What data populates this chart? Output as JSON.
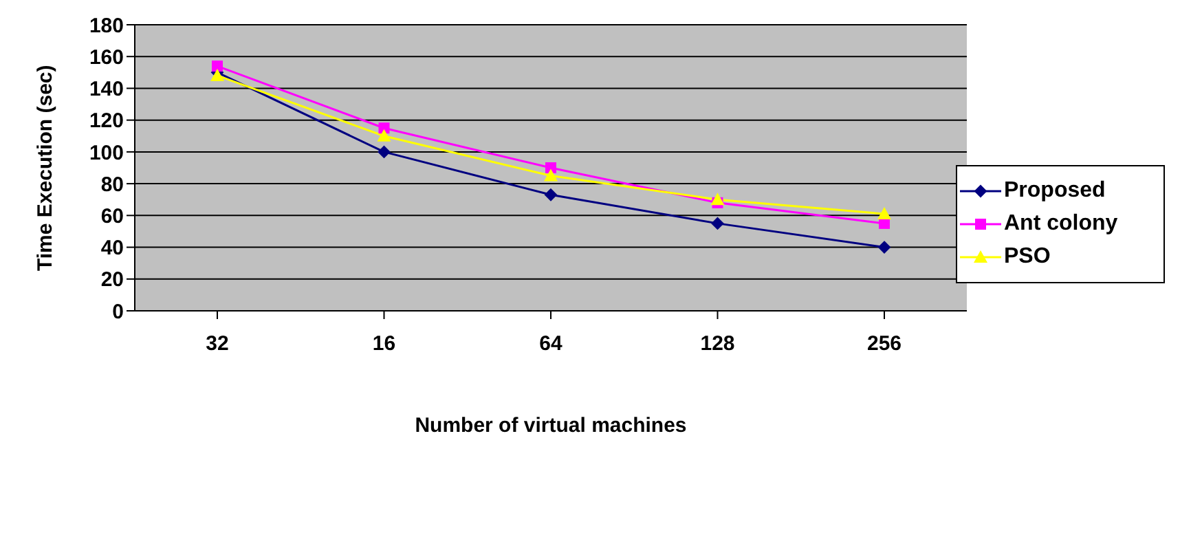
{
  "chart_data": {
    "type": "line",
    "xlabel": "Number of virtual machines",
    "ylabel": "Time Execution (sec)",
    "categories": [
      "32",
      "16",
      "64",
      "128",
      "256"
    ],
    "series": [
      {
        "name": "Proposed",
        "color": "#000080",
        "marker": "diamond",
        "values": [
          150,
          100,
          73,
          55,
          40
        ]
      },
      {
        "name": "Ant colony",
        "color": "#ff00ff",
        "marker": "square",
        "values": [
          154,
          115,
          90,
          68,
          55
        ]
      },
      {
        "name": "PSO",
        "color": "#ffff00",
        "marker": "triangle",
        "values": [
          148,
          110,
          85,
          70,
          61
        ]
      }
    ],
    "ylim": [
      0,
      180
    ],
    "yticks": [
      0,
      20,
      40,
      60,
      80,
      100,
      120,
      140,
      160,
      180
    ],
    "grid": "y",
    "legend": "right",
    "line_style": "solid"
  }
}
